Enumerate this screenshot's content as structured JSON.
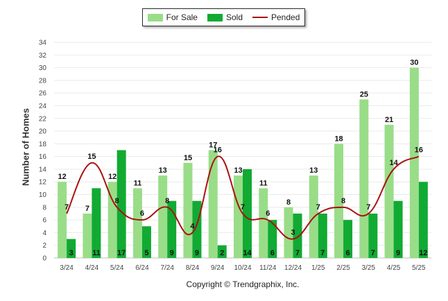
{
  "chart_data": {
    "type": "bar",
    "categories": [
      "3/24",
      "4/24",
      "5/24",
      "6/24",
      "7/24",
      "8/24",
      "9/24",
      "10/24",
      "11/24",
      "12/24",
      "1/25",
      "2/25",
      "3/25",
      "4/25",
      "5/25"
    ],
    "series": [
      {
        "name": "For Sale",
        "type": "bar",
        "color": "#99dd88",
        "values": [
          12,
          7,
          12,
          11,
          13,
          15,
          17,
          13,
          11,
          8,
          13,
          18,
          25,
          21,
          30
        ]
      },
      {
        "name": "Sold",
        "type": "bar",
        "color": "#11aa33",
        "values": [
          3,
          11,
          17,
          5,
          9,
          9,
          2,
          14,
          6,
          7,
          7,
          6,
          7,
          9,
          12
        ]
      },
      {
        "name": "Pended",
        "type": "line",
        "color": "#aa1111",
        "values": [
          7,
          15,
          8,
          6,
          8,
          4,
          16,
          7,
          6,
          3,
          7,
          8,
          7,
          14,
          16
        ]
      }
    ],
    "title": "",
    "xlabel": "",
    "ylabel": "Number of Homes",
    "ylim": [
      0,
      34
    ],
    "yticks": [
      0,
      2,
      4,
      6,
      8,
      10,
      12,
      14,
      16,
      18,
      20,
      22,
      24,
      26,
      28,
      30,
      32,
      34
    ],
    "grid": true,
    "legend_position": "top-center"
  },
  "footer": {
    "copyright": "Copyright © Trendgraphix, Inc."
  }
}
